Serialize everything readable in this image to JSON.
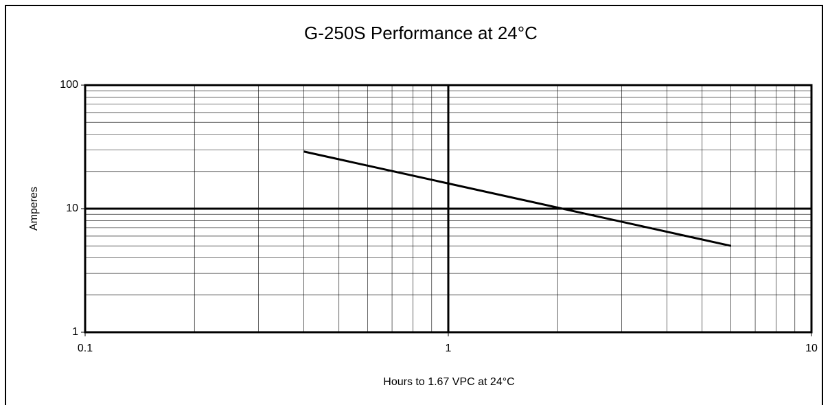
{
  "chart_data": {
    "type": "line",
    "title": "G-250S Performance at 24°C",
    "xlabel": "Hours to 1.67 VPC at 24°C",
    "ylabel": "Amperes",
    "x": [
      0.4,
      6
    ],
    "series": [
      {
        "name": "G-250S",
        "color": "#000000",
        "values": [
          29,
          5
        ]
      }
    ],
    "xlim": [
      0.1,
      10
    ],
    "ylim": [
      1,
      100
    ],
    "xticks": [
      0.1,
      1,
      10
    ],
    "yticks": [
      1,
      10,
      100
    ],
    "xscale": "log",
    "yscale": "log",
    "grid": true
  }
}
